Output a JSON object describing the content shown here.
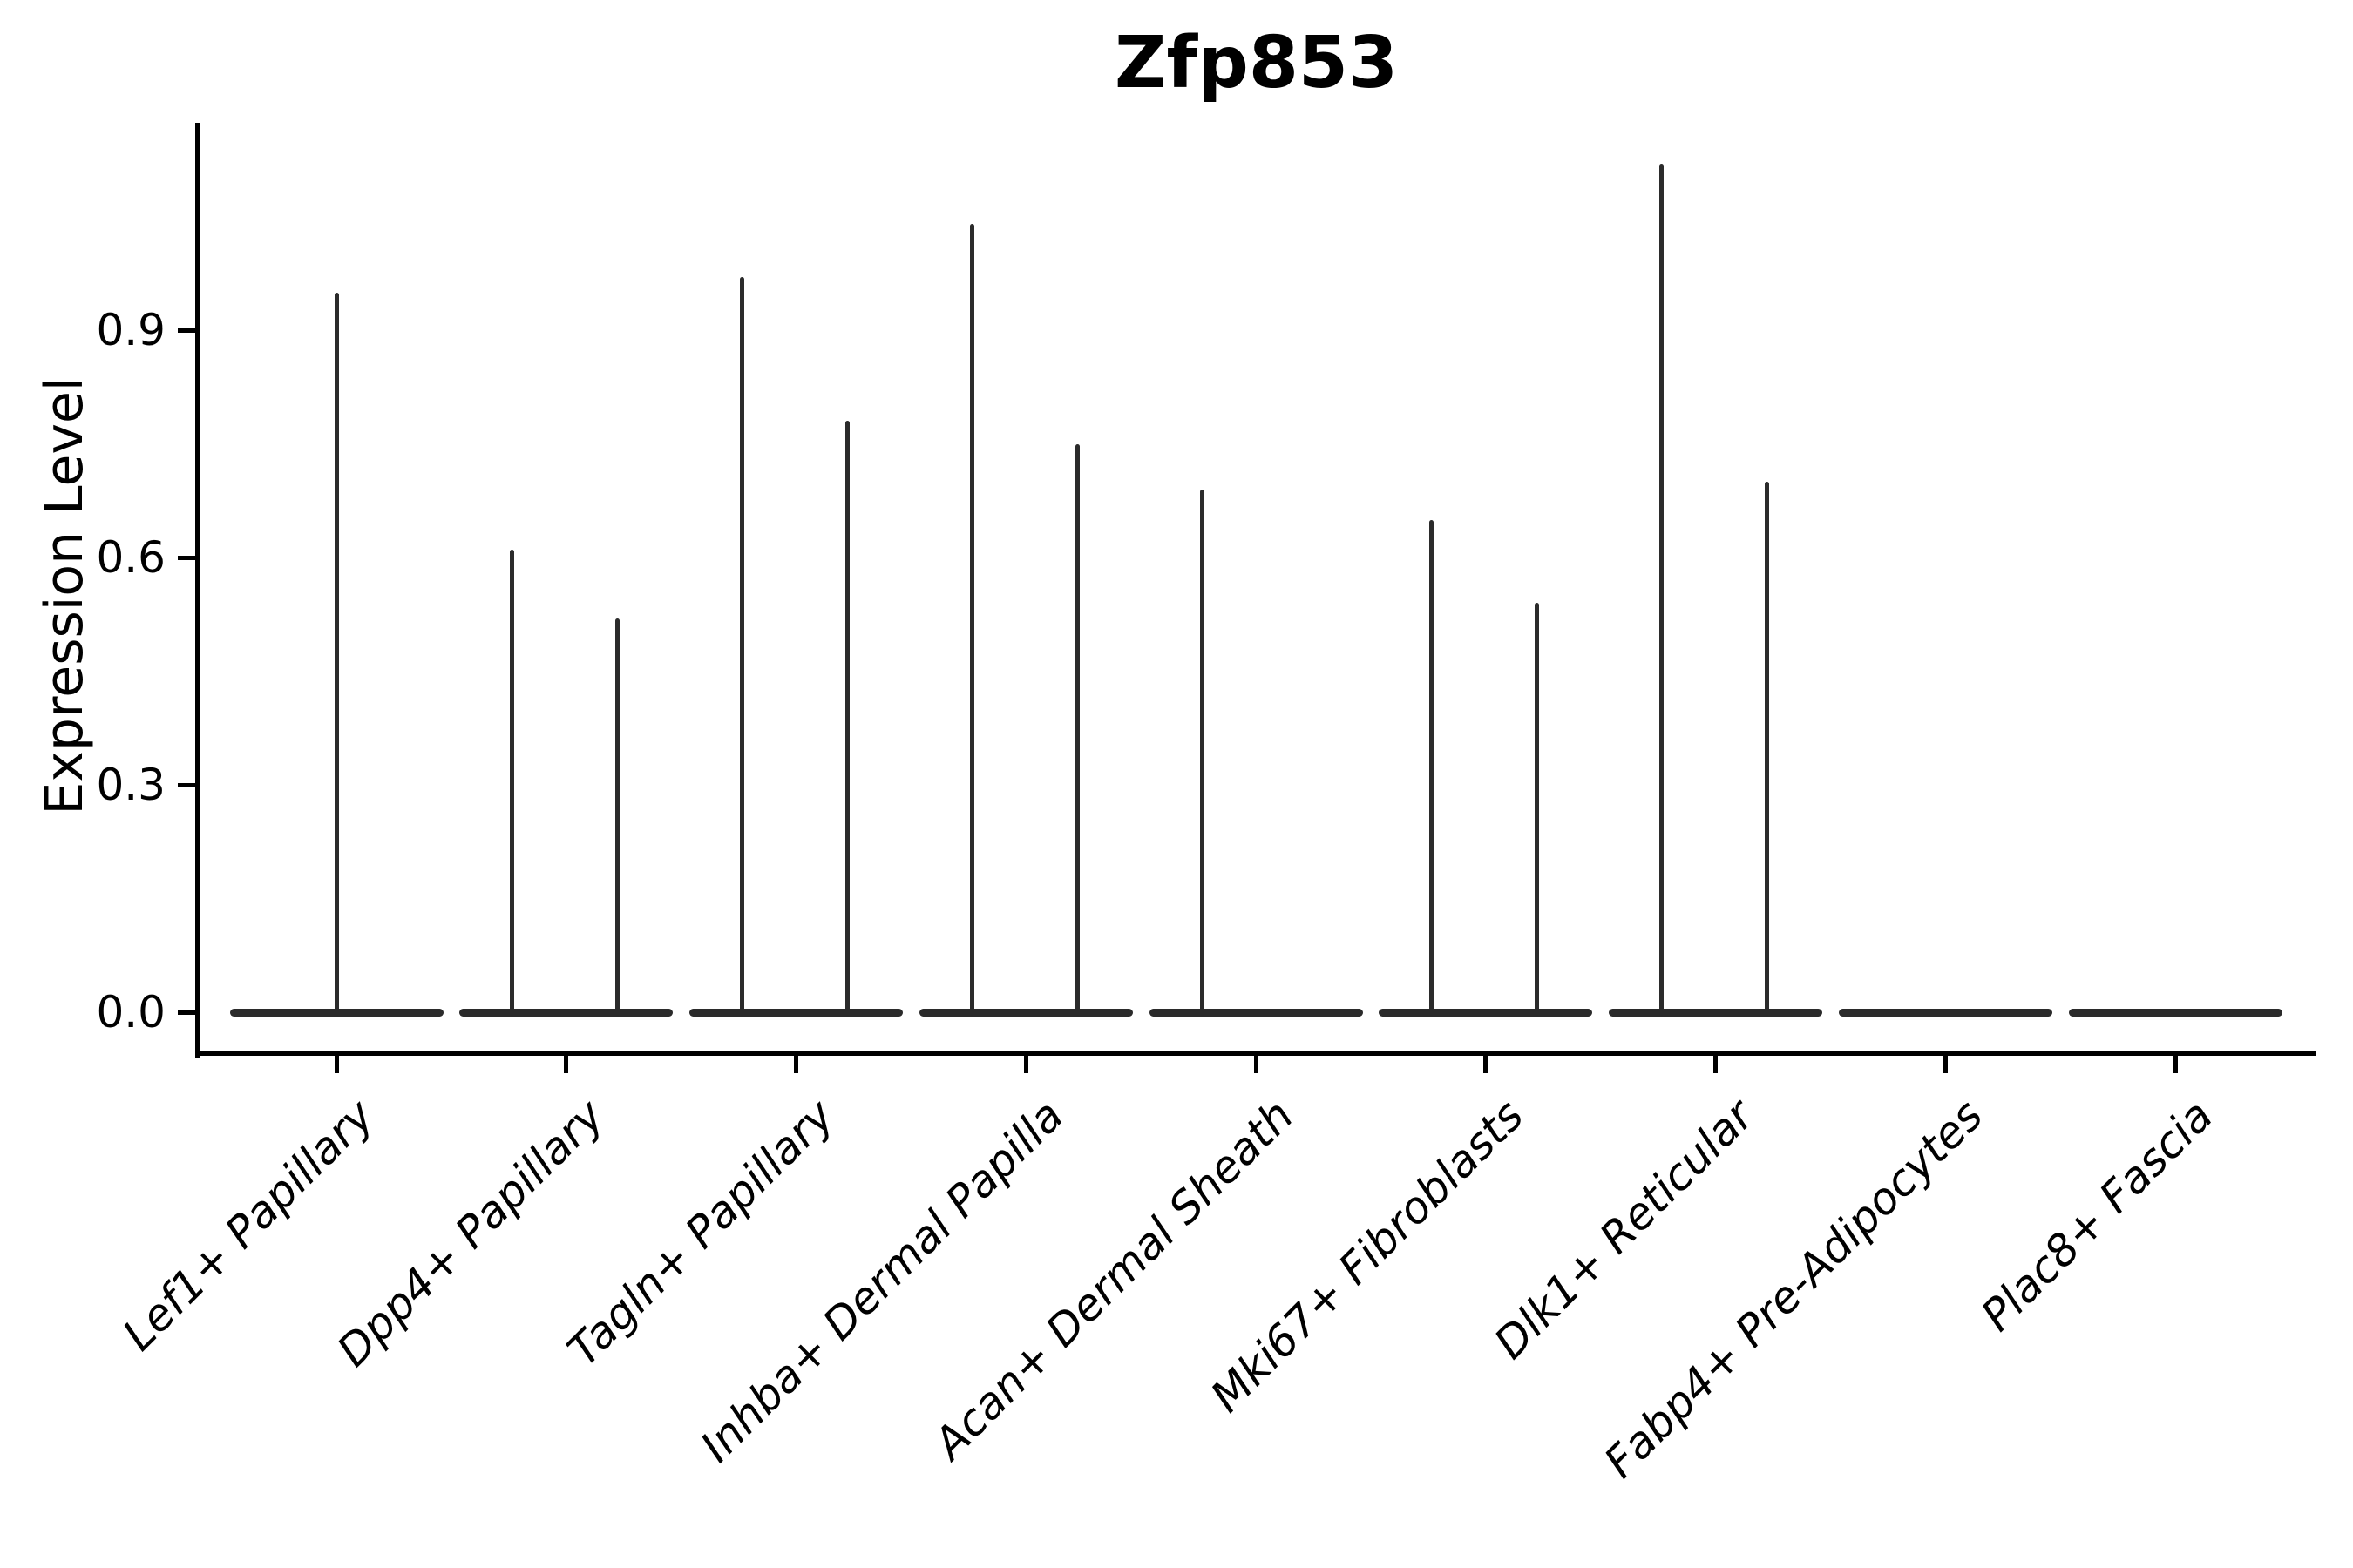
{
  "title": "Zfp853",
  "axes": {
    "ylabel": "Expression Level",
    "ytick_labels": [
      "0.0",
      "0.3",
      "0.6",
      "0.9"
    ]
  },
  "colors": {
    "background": "#ffffff",
    "violin": "#2b2b2b",
    "axis": "#000000",
    "text": "#000000"
  },
  "chart_data": {
    "type": "violin",
    "title": "Zfp853",
    "xlabel": "",
    "ylabel": "Expression Level",
    "yticks": [
      0.0,
      0.3,
      0.6,
      0.9
    ],
    "ylim": [
      -0.05,
      1.17
    ],
    "grid": false,
    "legend": "none",
    "description": "Single-cell expression violin plot; violins collapse to a flat bar at 0 with thin spikes up to the maximum expression value. Some categories show two dodged violins (left/right), each with its own spike.",
    "categories": [
      "Lef1+ Papillary",
      "Dpp4+ Papillary",
      "Tagln+ Papillary",
      "Inhba+ Dermal Papilla",
      "Acan+ Dermal Sheath",
      "Mki67+ Fibroblasts",
      "Dlk1+ Reticular",
      "Fabp4+ Pre-Adipocytes",
      "Plac8+ Fascia"
    ],
    "violins": [
      {
        "category": "Lef1+ Papillary",
        "baseline_body": true,
        "spikes": [
          {
            "position": "center",
            "max": 0.95
          }
        ]
      },
      {
        "category": "Dpp4+ Papillary",
        "baseline_body": true,
        "spikes": [
          {
            "position": "left",
            "max": 0.61
          },
          {
            "position": "right",
            "max": 0.52
          }
        ]
      },
      {
        "category": "Tagln+ Papillary",
        "baseline_body": true,
        "spikes": [
          {
            "position": "left",
            "max": 0.97
          },
          {
            "position": "right",
            "max": 0.78
          }
        ]
      },
      {
        "category": "Inhba+ Dermal Papilla",
        "baseline_body": true,
        "spikes": [
          {
            "position": "left",
            "max": 1.04
          },
          {
            "position": "right",
            "max": 0.75
          }
        ]
      },
      {
        "category": "Acan+ Dermal Sheath",
        "baseline_body": true,
        "spikes": [
          {
            "position": "left",
            "max": 0.69
          }
        ]
      },
      {
        "category": "Mki67+ Fibroblasts",
        "baseline_body": true,
        "spikes": [
          {
            "position": "left",
            "max": 0.65
          },
          {
            "position": "right",
            "max": 0.54
          }
        ]
      },
      {
        "category": "Dlk1+ Reticular",
        "baseline_body": true,
        "spikes": [
          {
            "position": "left",
            "max": 1.12
          },
          {
            "position": "right",
            "max": 0.7
          }
        ]
      },
      {
        "category": "Fabp4+ Pre-Adipocytes",
        "baseline_body": true,
        "spikes": []
      },
      {
        "category": "Plac8+ Fascia",
        "baseline_body": true,
        "spikes": []
      }
    ]
  }
}
